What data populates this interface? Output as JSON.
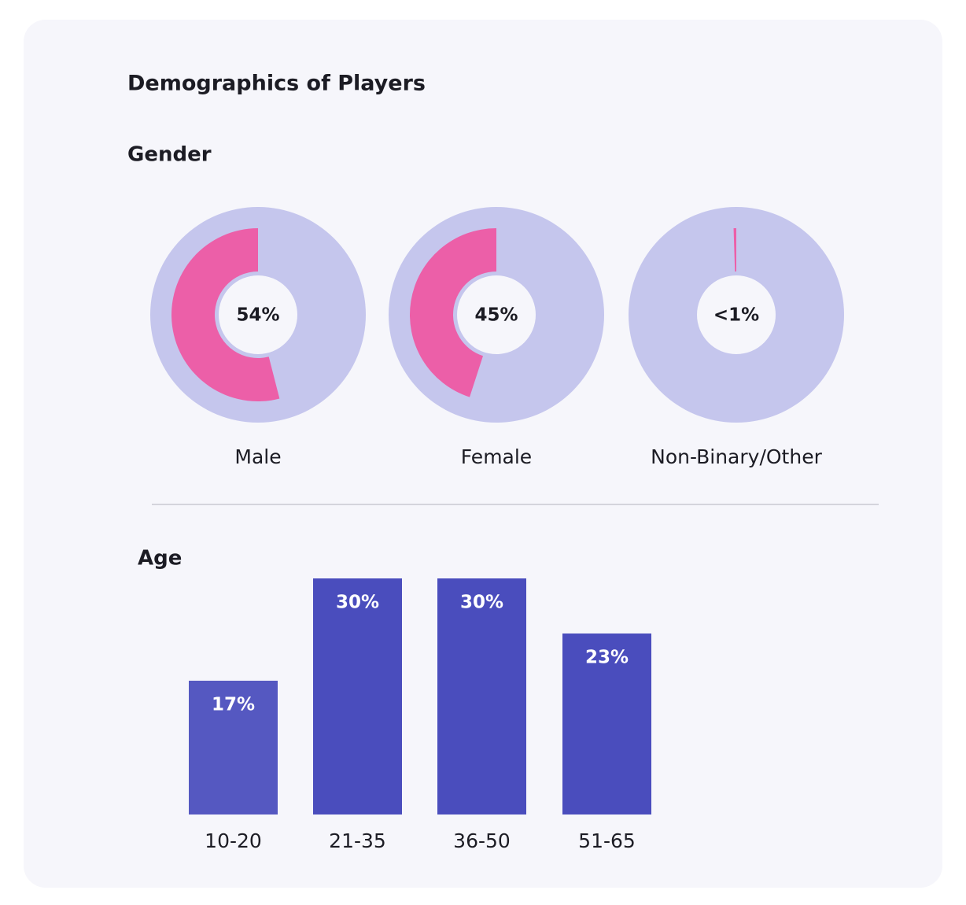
{
  "title": "Demographics of Players",
  "chart_data": [
    {
      "type": "donut",
      "title": "Gender",
      "categories": [
        "Male",
        "Female",
        "Non-Binary/Other"
      ],
      "values": [
        54,
        45,
        0.5
      ],
      "value_labels": [
        "54%",
        "45%",
        "<1%"
      ],
      "color": "#ec5fa8",
      "track_color": "#c5c6ed"
    },
    {
      "type": "bar",
      "title": "Age",
      "categories": [
        "10-20",
        "21-35",
        "36-50",
        "51-65"
      ],
      "values": [
        17,
        30,
        30,
        23
      ],
      "value_labels": [
        "17%",
        "30%",
        "30%",
        "23%"
      ],
      "colors": [
        "#5558c1",
        "#4a4dbd",
        "#4a4dbd",
        "#4a4dbd"
      ]
    }
  ]
}
